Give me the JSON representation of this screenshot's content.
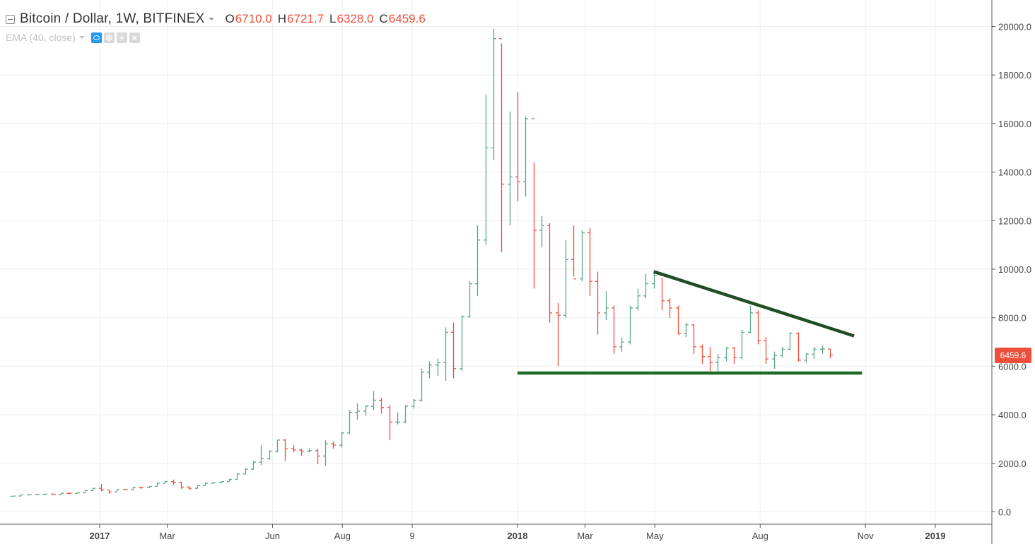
{
  "header": {
    "title": "Bitcoin / Dollar, 1W, BITFINEX",
    "ohlc": [
      {
        "key": "O",
        "value": "6710.0"
      },
      {
        "key": "H",
        "value": "6721.7"
      },
      {
        "key": "L",
        "value": "6328.0"
      },
      {
        "key": "C",
        "value": "6459.6"
      }
    ]
  },
  "study": {
    "label": "EMA (40, close)"
  },
  "price_axis": {
    "last_price_label": "6459.6"
  },
  "colors": {
    "up": "#5aa48a",
    "down": "#ef4f3a",
    "grid": "#eeeeee",
    "trendline": "#1f4d24",
    "support": "#1e6b25"
  },
  "chart_data": {
    "type": "ohlc",
    "timeframe": "1W",
    "x_range": [
      "2016-10-17",
      "2019-02-11"
    ],
    "ylim": [
      0,
      20000
    ],
    "grid": true,
    "y_ticks": [
      0,
      2000,
      4000,
      6000,
      8000,
      10000,
      12000,
      14000,
      16000,
      18000,
      20000
    ],
    "y_tick_labels": [
      "0.0",
      "2000.0",
      "4000.0",
      "6000.0",
      "8000.0",
      "10000.0",
      "12000.0",
      "14000.0",
      "16000.0",
      "18000.0",
      "20000.0"
    ],
    "x_ticks": [
      {
        "date": "2017-01-01",
        "label": "2017",
        "bold": true
      },
      {
        "date": "2017-03-01",
        "label": "Mar",
        "bold": false
      },
      {
        "date": "2017-06-01",
        "label": "Jun",
        "bold": false
      },
      {
        "date": "2017-08-01",
        "label": "Aug",
        "bold": false
      },
      {
        "date": "2017-10-01",
        "label": "9",
        "bold": false
      },
      {
        "date": "2018-01-01",
        "label": "2018",
        "bold": true
      },
      {
        "date": "2018-03-01",
        "label": "Mar",
        "bold": false
      },
      {
        "date": "2018-05-01",
        "label": "May",
        "bold": false
      },
      {
        "date": "2018-08-01",
        "label": "Aug",
        "bold": false
      },
      {
        "date": "2018-11-01",
        "label": "Nov",
        "bold": false
      },
      {
        "date": "2019-01-01",
        "label": "2019",
        "bold": true
      }
    ],
    "bars": [
      [
        "2016-10-17",
        640,
        660,
        630,
        652
      ],
      [
        "2016-10-24",
        652,
        705,
        650,
        700
      ],
      [
        "2016-10-31",
        700,
        712,
        680,
        705
      ],
      [
        "2016-11-07",
        705,
        725,
        695,
        718
      ],
      [
        "2016-11-14",
        718,
        742,
        705,
        735
      ],
      [
        "2016-11-21",
        735,
        745,
        700,
        712
      ],
      [
        "2016-11-28",
        712,
        770,
        705,
        765
      ],
      [
        "2016-12-05",
        765,
        775,
        745,
        760
      ],
      [
        "2016-12-12",
        760,
        790,
        755,
        785
      ],
      [
        "2016-12-19",
        785,
        900,
        780,
        880
      ],
      [
        "2016-12-26",
        880,
        980,
        870,
        970
      ],
      [
        "2017-01-02",
        970,
        1150,
        840,
        900
      ],
      [
        "2017-01-09",
        900,
        915,
        750,
        820
      ],
      [
        "2017-01-16",
        820,
        930,
        810,
        920
      ],
      [
        "2017-01-23",
        920,
        935,
        890,
        910
      ],
      [
        "2017-01-30",
        910,
        1030,
        900,
        1015
      ],
      [
        "2017-02-06",
        1015,
        1025,
        940,
        995
      ],
      [
        "2017-02-13",
        995,
        1060,
        985,
        1050
      ],
      [
        "2017-02-20",
        1050,
        1200,
        1040,
        1180
      ],
      [
        "2017-02-27",
        1180,
        1280,
        1170,
        1250
      ],
      [
        "2017-03-06",
        1250,
        1330,
        1100,
        1210
      ],
      [
        "2017-03-13",
        1210,
        1250,
        950,
        1020
      ],
      [
        "2017-03-20",
        1020,
        1060,
        900,
        970
      ],
      [
        "2017-03-27",
        970,
        1100,
        960,
        1080
      ],
      [
        "2017-04-03",
        1080,
        1210,
        1070,
        1180
      ],
      [
        "2017-04-10",
        1180,
        1220,
        1160,
        1200
      ],
      [
        "2017-04-17",
        1200,
        1260,
        1190,
        1250
      ],
      [
        "2017-04-24",
        1250,
        1350,
        1240,
        1340
      ],
      [
        "2017-05-01",
        1340,
        1600,
        1330,
        1560
      ],
      [
        "2017-05-08",
        1560,
        1800,
        1550,
        1760
      ],
      [
        "2017-05-15",
        1760,
        2100,
        1740,
        2050
      ],
      [
        "2017-05-22",
        2050,
        2750,
        1920,
        2200
      ],
      [
        "2017-05-29",
        2200,
        2550,
        2150,
        2500
      ],
      [
        "2017-06-05",
        2500,
        2970,
        2450,
        2960
      ],
      [
        "2017-06-12",
        2960,
        3000,
        2100,
        2600
      ],
      [
        "2017-06-19",
        2600,
        2760,
        2450,
        2550
      ],
      [
        "2017-06-26",
        2550,
        2600,
        2320,
        2500
      ],
      [
        "2017-07-03",
        2500,
        2620,
        2450,
        2520
      ],
      [
        "2017-07-10",
        2520,
        2600,
        1960,
        2300
      ],
      [
        "2017-07-17",
        2300,
        2950,
        1900,
        2800
      ],
      [
        "2017-07-24",
        2800,
        2900,
        2600,
        2750
      ],
      [
        "2017-07-31",
        2750,
        3300,
        2650,
        3250
      ],
      [
        "2017-08-07",
        3250,
        4200,
        3200,
        4100
      ],
      [
        "2017-08-14",
        4100,
        4480,
        3800,
        4150
      ],
      [
        "2017-08-21",
        4150,
        4400,
        3950,
        4350
      ],
      [
        "2017-08-28",
        4350,
        4980,
        4200,
        4600
      ],
      [
        "2017-09-04",
        4600,
        4700,
        4050,
        4300
      ],
      [
        "2017-09-11",
        4300,
        4400,
        2950,
        3700
      ],
      [
        "2017-09-18",
        3700,
        4100,
        3600,
        3700
      ],
      [
        "2017-09-25",
        3700,
        4400,
        3650,
        4350
      ],
      [
        "2017-10-02",
        4350,
        4650,
        4250,
        4600
      ],
      [
        "2017-10-09",
        4600,
        5900,
        4550,
        5750
      ],
      [
        "2017-10-16",
        5750,
        6200,
        5500,
        6050
      ],
      [
        "2017-10-23",
        6050,
        6320,
        5600,
        6150
      ],
      [
        "2017-10-30",
        6150,
        7600,
        5400,
        7400
      ],
      [
        "2017-11-06",
        7400,
        7800,
        5500,
        5900
      ],
      [
        "2017-11-13",
        5900,
        8100,
        5800,
        8050
      ],
      [
        "2017-11-20",
        8050,
        9500,
        8000,
        9400
      ],
      [
        "2017-11-27",
        9400,
        11800,
        8900,
        11200
      ],
      [
        "2017-12-04",
        11200,
        17200,
        11000,
        15000
      ],
      [
        "2017-12-11",
        15000,
        19900,
        14500,
        19500
      ],
      [
        "2017-12-18",
        19500,
        19300,
        10700,
        13500
      ],
      [
        "2017-12-25",
        13500,
        16500,
        11800,
        13800
      ],
      [
        "2018-01-01",
        13800,
        17300,
        12800,
        13600
      ],
      [
        "2018-01-08",
        13600,
        16300,
        13000,
        16200
      ],
      [
        "2018-01-15",
        16200,
        14400,
        9200,
        11600
      ],
      [
        "2018-01-22",
        11600,
        12200,
        10900,
        11800
      ],
      [
        "2018-01-29",
        11800,
        11900,
        7800,
        8200
      ],
      [
        "2018-02-05",
        8200,
        8600,
        6000,
        8100
      ],
      [
        "2018-02-12",
        8100,
        11200,
        8000,
        10400
      ],
      [
        "2018-02-19",
        10400,
        11800,
        9700,
        9600
      ],
      [
        "2018-02-26",
        9600,
        11600,
        9500,
        11500
      ],
      [
        "2018-03-05",
        11500,
        11700,
        8900,
        9500
      ],
      [
        "2018-03-12",
        9500,
        9900,
        7300,
        8200
      ],
      [
        "2018-03-19",
        8200,
        9100,
        7900,
        8400
      ],
      [
        "2018-03-26",
        8400,
        8500,
        6500,
        6800
      ],
      [
        "2018-04-02",
        6800,
        7200,
        6600,
        7000
      ],
      [
        "2018-04-09",
        7000,
        8500,
        6900,
        8400
      ],
      [
        "2018-04-16",
        8400,
        9200,
        8300,
        8900
      ],
      [
        "2018-04-23",
        8900,
        9800,
        8800,
        9400
      ],
      [
        "2018-04-30",
        9400,
        9900,
        9200,
        9750
      ],
      [
        "2018-05-07",
        9750,
        9650,
        8300,
        8700
      ],
      [
        "2018-05-14",
        8700,
        8800,
        8000,
        8400
      ],
      [
        "2018-05-21",
        8400,
        8500,
        7300,
        7350
      ],
      [
        "2018-05-28",
        7350,
        7800,
        7200,
        7700
      ],
      [
        "2018-06-04",
        7700,
        7750,
        6500,
        6800
      ],
      [
        "2018-06-11",
        6800,
        6900,
        6100,
        6400
      ],
      [
        "2018-06-18",
        6400,
        6800,
        5800,
        6150
      ],
      [
        "2018-06-25",
        6150,
        6500,
        5800,
        6350
      ],
      [
        "2018-07-02",
        6350,
        6800,
        6200,
        6750
      ],
      [
        "2018-07-09",
        6750,
        6800,
        6100,
        6350
      ],
      [
        "2018-07-16",
        6350,
        7500,
        6300,
        7400
      ],
      [
        "2018-07-23",
        7400,
        8500,
        7350,
        8200
      ],
      [
        "2018-07-30",
        8200,
        8300,
        6900,
        7050
      ],
      [
        "2018-08-06",
        7050,
        7200,
        6100,
        6300
      ],
      [
        "2018-08-13",
        6300,
        6600,
        5900,
        6450
      ],
      [
        "2018-08-20",
        6450,
        6800,
        6350,
        6700
      ],
      [
        "2018-08-27",
        6700,
        7400,
        6650,
        7350
      ],
      [
        "2018-09-03",
        7350,
        7400,
        6200,
        6250
      ],
      [
        "2018-09-10",
        6250,
        6550,
        6150,
        6500
      ],
      [
        "2018-09-17",
        6500,
        6800,
        6300,
        6700
      ],
      [
        "2018-09-24",
        6700,
        6850,
        6500,
        6710
      ],
      [
        "2018-10-01",
        6710,
        6721.7,
        6328,
        6459.6
      ]
    ],
    "annotations": [
      {
        "type": "trendline",
        "from": [
          "2018-04-30",
          9900
        ],
        "to": [
          "2018-10-22",
          7250
        ]
      },
      {
        "type": "horizontal_line",
        "y": 5720,
        "from": "2018-01-01",
        "to": "2018-10-29"
      }
    ]
  }
}
